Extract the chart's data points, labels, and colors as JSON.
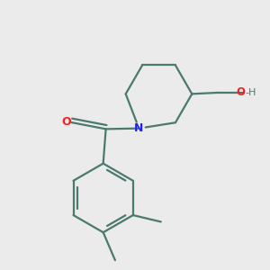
{
  "bg_color": "#ebebeb",
  "bond_color": "#4a7a6e",
  "N_color": "#2222ee",
  "O_color": "#ee2222",
  "OH_color": "#cc3333",
  "H_color": "#4a7a6e",
  "line_width": 1.6,
  "figsize": [
    3.0,
    3.0
  ],
  "dpi": 100,
  "xlim": [
    -1.6,
    2.0
  ],
  "ylim": [
    -2.4,
    1.6
  ]
}
